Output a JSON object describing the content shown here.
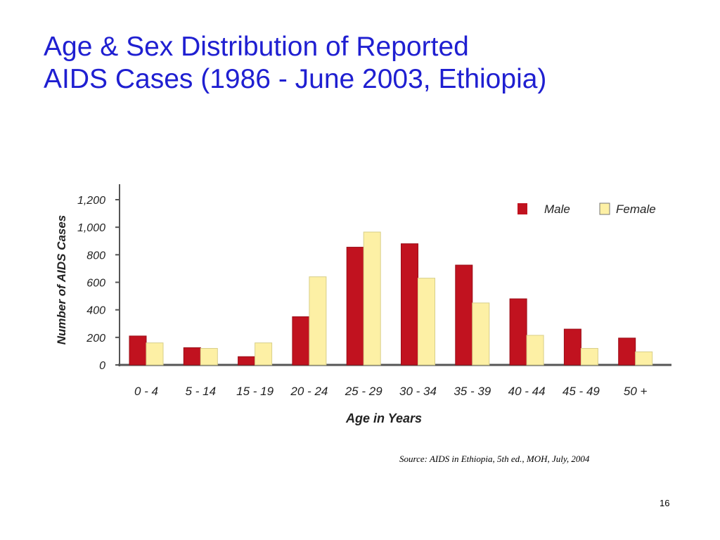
{
  "slide": {
    "title_line1": "Age & Sex Distribution of Reported",
    "title_line2": "AIDS Cases (1986 - June 2003, Ethiopia)",
    "source": "Source:  AIDS in Ethiopia, 5th ed., MOH, July, 2004",
    "page_number": "16"
  },
  "colors": {
    "title": "#1f1fd1",
    "male": "#c1121f",
    "female": "#fdf0a5"
  },
  "chart_data": {
    "type": "bar",
    "title": "",
    "xlabel": "Age in Years",
    "ylabel": "Number of AIDS Cases",
    "ylim": [
      0,
      1200
    ],
    "yticks": [
      0,
      200,
      400,
      600,
      800,
      1000,
      1200
    ],
    "ytick_labels": [
      "0",
      "200",
      "400",
      "600",
      "800",
      "1,000",
      "1,200"
    ],
    "categories": [
      "0 - 4",
      "5 - 14",
      "15 - 19",
      "20 - 24",
      "25 - 29",
      "30 - 34",
      "35 - 39",
      "40 - 44",
      "45 - 49",
      "50 +"
    ],
    "series": [
      {
        "name": "Male",
        "values": [
          210,
          125,
          60,
          350,
          855,
          880,
          725,
          480,
          260,
          195
        ]
      },
      {
        "name": "Female",
        "values": [
          160,
          120,
          160,
          640,
          965,
          630,
          450,
          215,
          120,
          95
        ]
      }
    ],
    "legend_position": "top-right",
    "grid": false
  }
}
